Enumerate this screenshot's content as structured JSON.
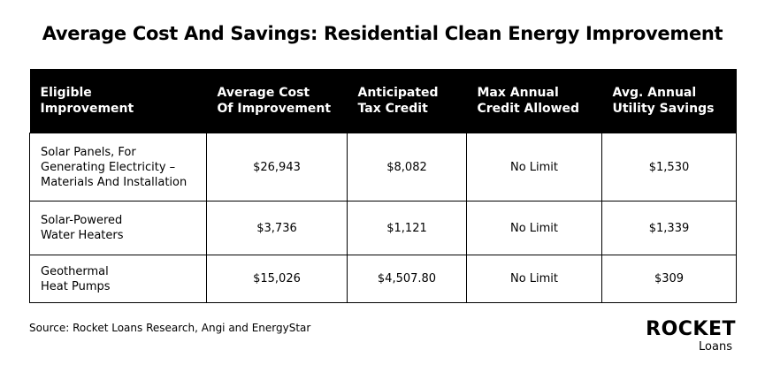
{
  "header": {
    "title": "Average Cost And Savings: Residential Clean Energy Improvement"
  },
  "table": {
    "columns": [
      [
        "Eligible",
        "Improvement"
      ],
      [
        "Average Cost",
        "Of Improvement"
      ],
      [
        "Anticipated",
        "Tax Credit"
      ],
      [
        "Max Annual",
        "Credit Allowed"
      ],
      [
        "Avg. Annual",
        "Utility Savings"
      ]
    ],
    "rows": [
      [
        [
          "Solar Panels, For",
          "Generating Electricity –",
          "Materials And Installation"
        ],
        "$26,943",
        "$8,082",
        "No Limit",
        "$1,530"
      ],
      [
        [
          "Solar-Powered",
          "Water Heaters"
        ],
        "$3,736",
        "$1,121",
        "No Limit",
        "$1,339"
      ],
      [
        [
          "Geothermal",
          "Heat Pumps"
        ],
        "$15,026",
        "$4,507.80",
        "No Limit",
        "$309"
      ]
    ]
  },
  "footer": {
    "source": "Source: Rocket Loans Research, Angi and EnergyStar",
    "logo": {
      "word": "ROCKET",
      "sub": "Loans"
    }
  }
}
